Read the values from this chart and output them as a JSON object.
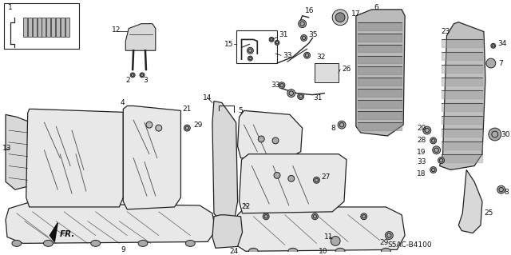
{
  "bg_color": "#ffffff",
  "diagram_code": "S5AC-B4100",
  "fr_label": "FR.",
  "lc": "#222222",
  "tc": "#111111",
  "fs": 6.5,
  "seat_fill": "#e8e8e8",
  "part_fill": "#d8d8d8",
  "frame_fill": "#c8c8c8"
}
